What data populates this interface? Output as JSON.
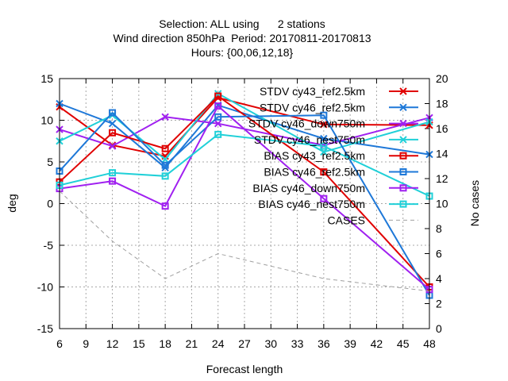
{
  "chart_data": {
    "type": "line",
    "title_lines": [
      "Selection: ALL using      2 stations",
      "Wind direction 850hPa  Period: 20170811-20170813",
      "Hours: {00,06,12,18}"
    ],
    "xlabel": "Forecast length",
    "ylabel": "deg",
    "y2label": "No cases",
    "xlim": [
      6,
      48
    ],
    "ylim": [
      -15,
      15
    ],
    "y2lim": [
      0,
      20
    ],
    "xticks": [
      6,
      9,
      12,
      15,
      18,
      21,
      24,
      27,
      30,
      33,
      36,
      39,
      42,
      45,
      48
    ],
    "yticks": [
      -15,
      -10,
      -5,
      0,
      5,
      10,
      15
    ],
    "y2ticks": [
      0,
      2,
      4,
      6,
      8,
      10,
      12,
      14,
      16,
      18,
      20
    ],
    "grid": true,
    "legend_position": "top-right",
    "x": [
      6,
      12,
      18,
      24,
      36,
      48
    ],
    "series": [
      {
        "name": "STDV cy43_ref2.5km",
        "color": "#e00000",
        "marker": "x",
        "dash": "solid",
        "axis": "y",
        "values": [
          11.6,
          7.0,
          5.7,
          12.7,
          9.5,
          9.4
        ]
      },
      {
        "name": "STDV cy46_ref2.5km",
        "color": "#1e78d8",
        "marker": "x",
        "dash": "solid",
        "axis": "y",
        "values": [
          12.0,
          9.6,
          4.3,
          11.8,
          7.8,
          5.9
        ]
      },
      {
        "name": "STDV cy46_down750m",
        "color": "#a020f0",
        "marker": "x",
        "dash": "solid",
        "axis": "y",
        "values": [
          8.9,
          6.9,
          10.4,
          9.6,
          7.0,
          10.3
        ]
      },
      {
        "name": "STDV cy46_nest750m",
        "color": "#20d0d8",
        "marker": "x",
        "dash": "solid",
        "axis": "y",
        "values": [
          7.5,
          10.6,
          5.3,
          13.2,
          6.2,
          9.8
        ]
      },
      {
        "name": "BIAS cy43_ref2.5km",
        "color": "#e00000",
        "marker": "square",
        "dash": "solid",
        "axis": "y",
        "values": [
          2.6,
          8.5,
          6.6,
          12.9,
          3.8,
          -10.0
        ]
      },
      {
        "name": "BIAS cy46_ref2.5km",
        "color": "#1e78d8",
        "marker": "square",
        "dash": "solid",
        "axis": "y",
        "values": [
          3.9,
          10.9,
          4.6,
          10.4,
          10.6,
          -11.0
        ]
      },
      {
        "name": "BIAS cy46_down750m",
        "color": "#a020f0",
        "marker": "square",
        "dash": "solid",
        "axis": "y",
        "values": [
          1.8,
          2.7,
          -0.3,
          11.7,
          0.6,
          -10.3
        ]
      },
      {
        "name": "BIAS cy46_nest750m",
        "color": "#20d0d8",
        "marker": "square",
        "dash": "solid",
        "axis": "y",
        "values": [
          2.2,
          3.7,
          3.3,
          8.3,
          6.9,
          0.9
        ]
      },
      {
        "name": "CASES",
        "color": "#a0a0a0",
        "marker": "none",
        "dash": "dashed",
        "axis": "y2",
        "values": [
          11,
          7,
          4,
          6,
          4,
          3
        ]
      }
    ]
  }
}
